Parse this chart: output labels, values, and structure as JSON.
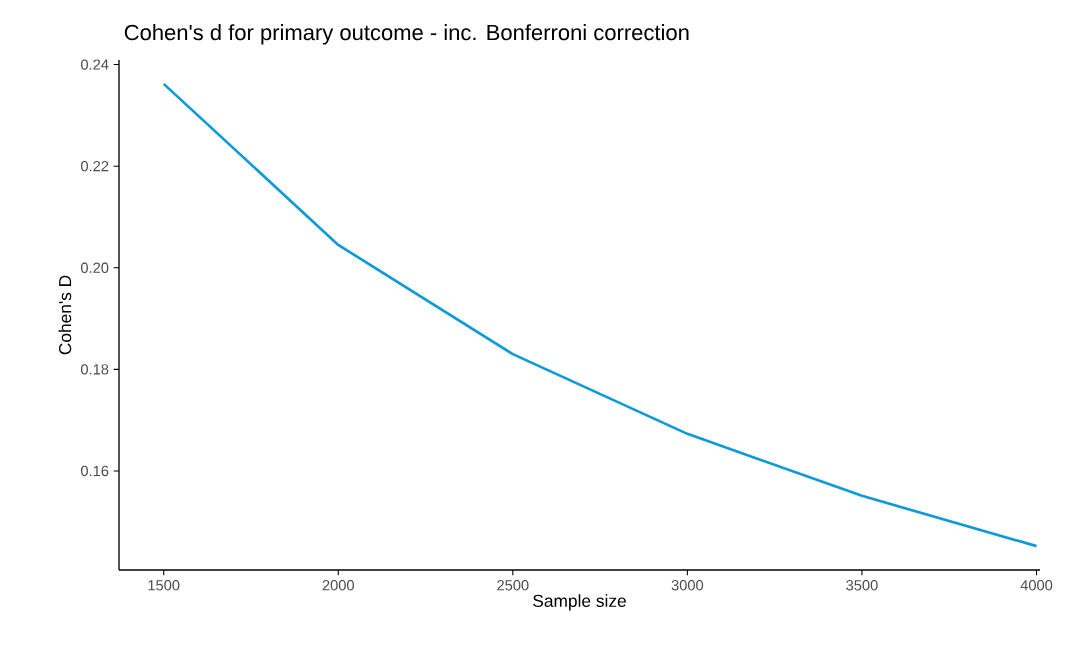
{
  "chart_data": {
    "type": "line",
    "title": "Cohen's d for primary outcome - inc. Bonferroni correction",
    "xlabel": "Sample size",
    "ylabel": "Cohen's D",
    "x": [
      1500,
      2000,
      2500,
      3000,
      3500,
      4000
    ],
    "series": [
      {
        "color": "#0d9ad8",
        "values": [
          0.2362,
          0.2045,
          0.183,
          0.1673,
          0.1551,
          0.1452
        ]
      }
    ],
    "xlim": [
      1372,
      4010
    ],
    "ylim": [
      0.1405,
      0.2409
    ],
    "xticks": [
      1500,
      2000,
      2500,
      3000,
      3500,
      4000
    ],
    "yticks": [
      0.16,
      0.18,
      {
        "value": 0.2,
        "label": "0.20"
      },
      0.22,
      0.24
    ],
    "grid": false,
    "marker": "none",
    "line_style": "solid"
  }
}
